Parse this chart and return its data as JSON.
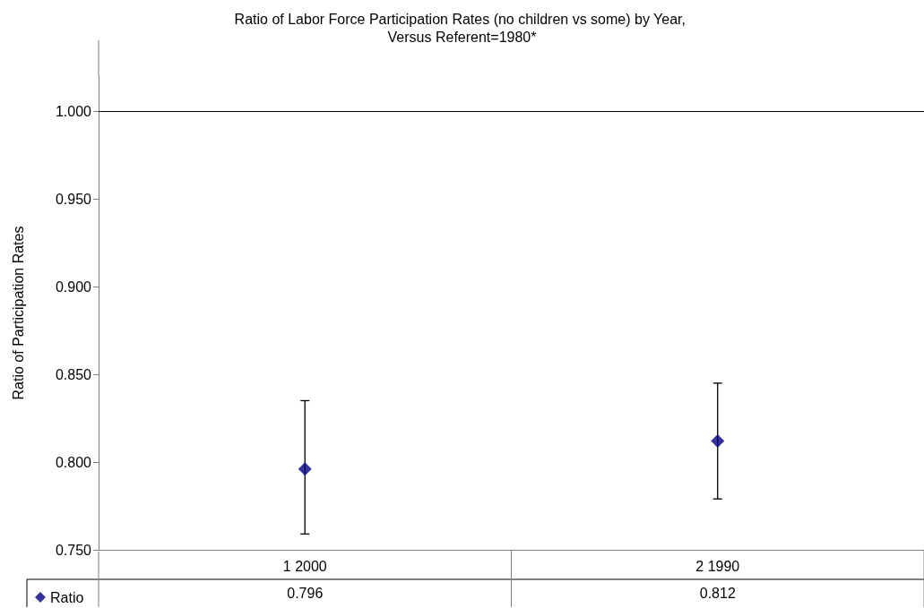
{
  "chart_data": {
    "type": "scatter",
    "title": "Ratio of Labor Force Participation Rates (no children vs some) by Year, Versus Referent=1980*",
    "ylabel": "Ratio of Participation Rates",
    "categories": [
      "1 2000",
      "2 1990"
    ],
    "series": [
      {
        "name": "Ratio",
        "color": "#000080",
        "values": [
          0.796,
          0.812
        ],
        "errors": [
          [
            0.759,
            0.835
          ],
          [
            0.779,
            0.845
          ]
        ]
      }
    ],
    "ylim": [
      0.75,
      1.02
    ],
    "yticks": [
      {
        "value": 0.75,
        "label": "0.750"
      },
      {
        "value": 0.8,
        "label": "0.800"
      },
      {
        "value": 0.85,
        "label": "0.850"
      },
      {
        "value": 0.9,
        "label": "0.900"
      },
      {
        "value": 0.95,
        "label": "0.950"
      },
      {
        "value": 1.0,
        "label": "1.000"
      }
    ],
    "ref_lines": [
      {
        "axis": "y",
        "value": 1.0,
        "color": "#000000"
      }
    ],
    "marker": "diamond",
    "grid": false,
    "legend": "bottom left",
    "data_labels": true
  }
}
